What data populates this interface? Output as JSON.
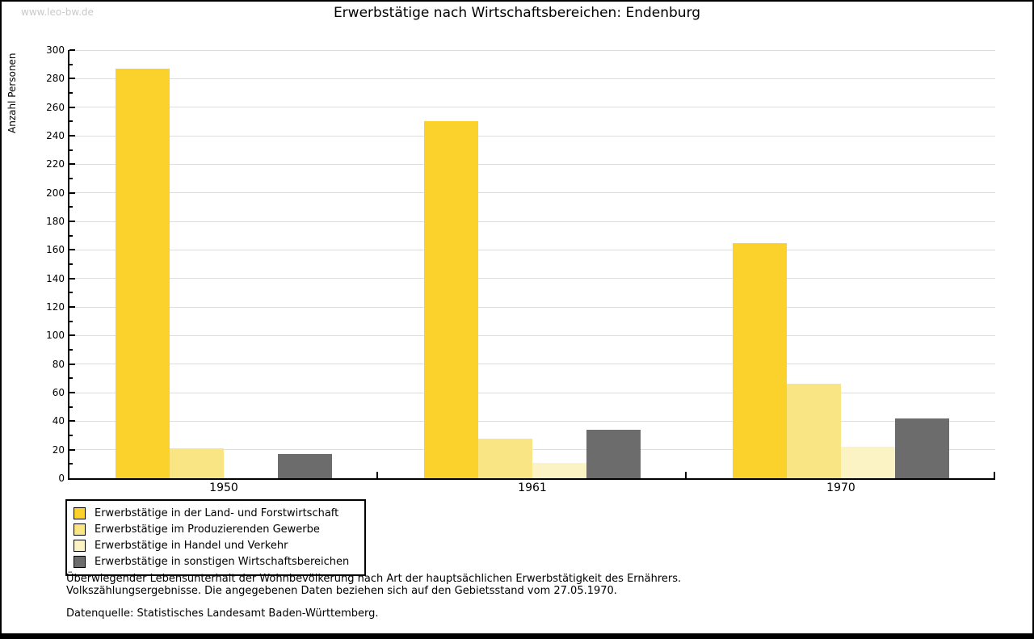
{
  "watermark": "www.leo-bw.de",
  "title": "Erwerbstätige nach Wirtschaftsbereichen: Endenburg",
  "chart_data": {
    "type": "bar",
    "title": "Erwerbstätige nach Wirtschaftsbereichen: Endenburg",
    "ylabel": "Anzahl Personen",
    "xlabel": "",
    "categories": [
      "1950",
      "1961",
      "1970"
    ],
    "ylim": [
      0,
      300
    ],
    "ytick_step": 20,
    "yminor_step": 10,
    "grid": true,
    "legend_position": "bottom-left",
    "series": [
      {
        "name": "Erwerbstätige in der Land- und Forstwirtschaft",
        "color": "#FBD22B",
        "values": [
          287,
          250,
          165
        ]
      },
      {
        "name": "Erwerbstätige im Produzierenden Gewerbe",
        "color": "#FAE584",
        "values": [
          21,
          28,
          66
        ]
      },
      {
        "name": "Erwerbstätige in Handel und Verkehr",
        "color": "#FBF3C3",
        "values": [
          0,
          11,
          22
        ]
      },
      {
        "name": "Erwerbstätige in sonstigen Wirtschaftsbereichen",
        "color": "#6C6C6C",
        "values": [
          17,
          34,
          42
        ]
      }
    ]
  },
  "footnotes": {
    "line1": "Überwiegender Lebensunterhalt der Wohnbevölkerung nach Art der hauptsächlichen Erwerbstätigkeit des Ernährers.",
    "line2": "Volkszählungsergebnisse. Die angegebenen Daten beziehen sich auf den Gebietsstand vom 27.05.1970.",
    "source": "Datenquelle: Statistisches Landesamt Baden-Württemberg."
  }
}
